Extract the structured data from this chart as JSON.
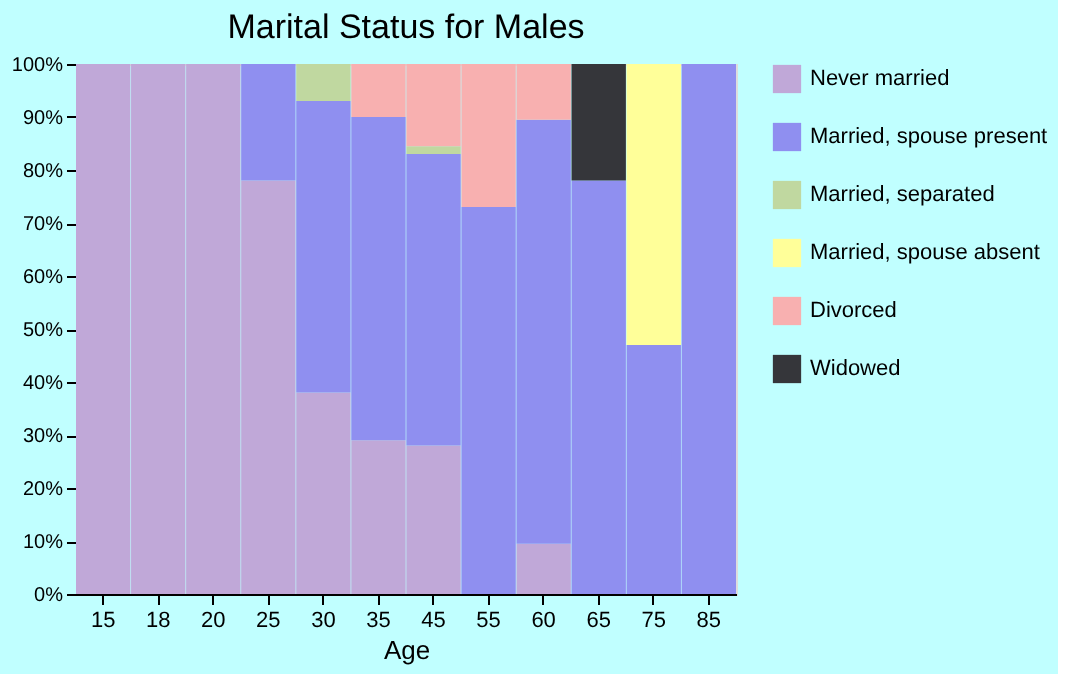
{
  "chart_data": {
    "type": "bar",
    "title": "Marital Status for Males",
    "xlabel": "Age",
    "stacked": true,
    "legend": "right",
    "grid": false,
    "categories": [
      "15",
      "18",
      "20",
      "25",
      "30",
      "35",
      "45",
      "55",
      "60",
      "65",
      "75",
      "85"
    ],
    "ylim": [
      0,
      100
    ],
    "yticks": [
      {
        "value": 0,
        "label": "0%"
      },
      {
        "value": 10,
        "label": "10%"
      },
      {
        "value": 20,
        "label": "20%"
      },
      {
        "value": 30,
        "label": "30%"
      },
      {
        "value": 40,
        "label": "40%"
      },
      {
        "value": 50,
        "label": "50%"
      },
      {
        "value": 60,
        "label": "60%"
      },
      {
        "value": 70,
        "label": "70%"
      },
      {
        "value": 80,
        "label": "80%"
      },
      {
        "value": 90,
        "label": "90%"
      },
      {
        "value": 100,
        "label": "100%"
      }
    ],
    "series": [
      {
        "name": "Never married",
        "color": "#c0a8d8",
        "values": [
          100,
          100,
          100,
          78,
          38,
          29,
          28,
          null,
          9.5,
          null,
          null,
          null
        ]
      },
      {
        "name": "Married, spouse present",
        "color": "#8f8ff0",
        "values": [
          null,
          null,
          null,
          22,
          55,
          61,
          55,
          73,
          80,
          78,
          47,
          100
        ]
      },
      {
        "name": "Married, separated",
        "color": "#c0d8a0",
        "values": [
          null,
          null,
          null,
          null,
          7,
          null,
          1.5,
          null,
          null,
          null,
          null,
          null
        ]
      },
      {
        "name": "Married, spouse absent",
        "color": "#ffff99",
        "values": [
          null,
          null,
          null,
          null,
          null,
          null,
          null,
          null,
          null,
          null,
          53,
          null
        ]
      },
      {
        "name": "Divorced",
        "color": "#f8b0b0",
        "values": [
          null,
          null,
          null,
          null,
          null,
          10,
          15.5,
          27,
          10.5,
          null,
          null,
          null
        ]
      },
      {
        "name": "Widowed",
        "color": "#35363a",
        "values": [
          null,
          null,
          null,
          null,
          null,
          null,
          null,
          null,
          null,
          22,
          null,
          null
        ]
      }
    ]
  }
}
